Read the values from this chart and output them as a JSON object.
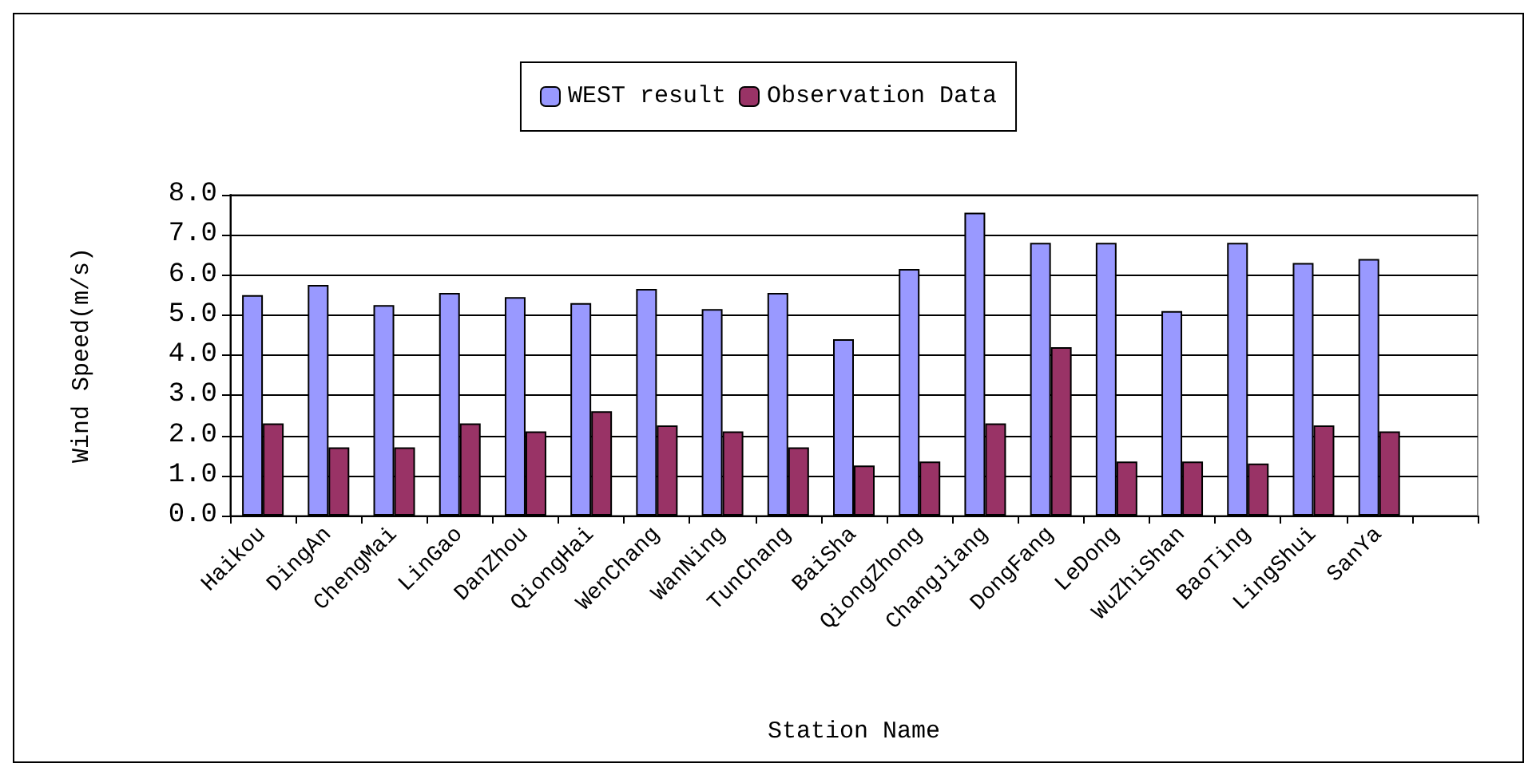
{
  "chart_data": {
    "type": "bar",
    "xlabel": "Station Name",
    "ylabel": "Wind Speed(m/s)",
    "categories": [
      "Haikou",
      "DingAn",
      "ChengMai",
      "LinGao",
      "DanZhou",
      "QiongHai",
      "WenChang",
      "WanNing",
      "TunChang",
      "BaiSha",
      "QiongZhong",
      "ChangJiang",
      "DongFang",
      "LeDong",
      "WuZhiShan",
      "BaoTing",
      "LingShui",
      "SanYa",
      null
    ],
    "series": [
      {
        "name": "WEST result",
        "color": "#9999ff",
        "values": [
          5.5,
          5.75,
          5.25,
          5.55,
          5.45,
          5.3,
          5.65,
          5.15,
          5.55,
          4.4,
          6.15,
          7.55,
          6.8,
          6.8,
          5.1,
          6.8,
          6.3,
          6.4,
          null
        ]
      },
      {
        "name": "Observation Data",
        "color": "#993366",
        "values": [
          2.3,
          1.7,
          1.7,
          2.3,
          2.1,
          2.6,
          2.25,
          2.1,
          1.7,
          1.25,
          1.35,
          2.3,
          4.2,
          1.35,
          1.35,
          1.3,
          2.25,
          2.1,
          null
        ]
      }
    ],
    "ylim": [
      0,
      8
    ],
    "yticks": [
      {
        "value": 0,
        "label": "0.0"
      },
      {
        "value": 1,
        "label": "1.0"
      },
      {
        "value": 2,
        "label": "2.0"
      },
      {
        "value": 3,
        "label": "3.0"
      },
      {
        "value": 4,
        "label": "4.0"
      },
      {
        "value": 5,
        "label": "5.0"
      },
      {
        "value": 6,
        "label": "6.0"
      },
      {
        "value": 7,
        "label": "7.0"
      },
      {
        "value": 8,
        "label": "8.0"
      }
    ],
    "grid": "y",
    "legend": "top"
  }
}
